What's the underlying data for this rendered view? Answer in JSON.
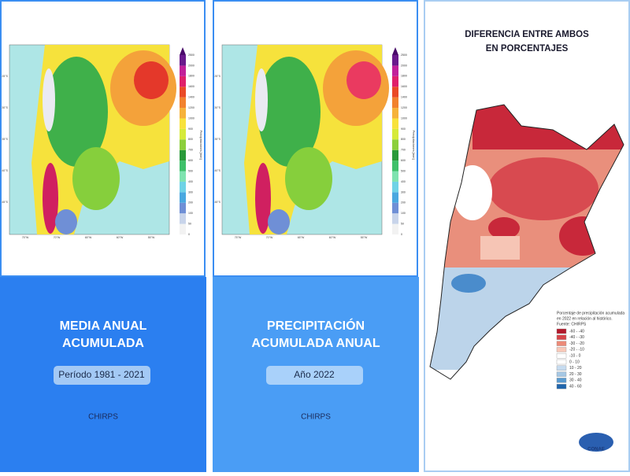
{
  "panels": [
    {
      "title_lines": [
        "MEDIA ANUAL",
        "ACUMULADA"
      ],
      "period": "Período 1981 - 2021",
      "source": "CHIRPS"
    },
    {
      "title_lines": [
        "PRECIPITACIÓN",
        "ACUMULADA ANUAL"
      ],
      "period": "Año 2022",
      "source": "CHIRPS"
    }
  ],
  "colorbar": {
    "axis_label": "Precipitaciones [mm]",
    "ticks": [
      0,
      50,
      100,
      200,
      300,
      400,
      500,
      600,
      700,
      800,
      900,
      1000,
      1200,
      1400,
      1600,
      1800,
      2000,
      2500
    ],
    "colors": [
      "#f2f2f2",
      "#c8d4ea",
      "#6f8fd6",
      "#4aa8e0",
      "#6fd3e6",
      "#7fe3b0",
      "#3fc06a",
      "#2a9a3a",
      "#8ccf3c",
      "#d6ea3a",
      "#f8e23c",
      "#f6b23a",
      "#f2822e",
      "#ea4a26",
      "#e0206a",
      "#c2209a",
      "#6a1a8c"
    ]
  },
  "map_lat_labels": [
    "25°S",
    "30°S",
    "35°S",
    "40°S",
    "45°S"
  ],
  "map_lon_labels": [
    "75°W",
    "70°W",
    "65°W",
    "60°W",
    "55°W"
  ],
  "difference": {
    "title_lines": [
      "DIFERENCIA ENTRE AMBOS",
      "EN PORCENTAJES"
    ],
    "legend_lines": [
      "Porcentaje de precipitación acumulada",
      "en 2022 en relación al histórico.",
      "Fuente: CHIRPS"
    ],
    "legend": [
      {
        "label": "-60 - -40",
        "color": "#b2182b"
      },
      {
        "label": "-40 - -30",
        "color": "#d6454a"
      },
      {
        "label": "-30 - -20",
        "color": "#ec8a78"
      },
      {
        "label": "-20 - -10",
        "color": "#f8c8b8"
      },
      {
        "label": "-10 - 0",
        "color": "#ffffff"
      },
      {
        "label": "0 - 10",
        "color": "#ffffff"
      },
      {
        "label": "10 - 20",
        "color": "#c6dbef"
      },
      {
        "label": "20 - 30",
        "color": "#a6c8e4"
      },
      {
        "label": "30 - 40",
        "color": "#5a9bd0"
      },
      {
        "label": "40 - 60",
        "color": "#2166ac"
      }
    ],
    "logo": "CONAE"
  }
}
